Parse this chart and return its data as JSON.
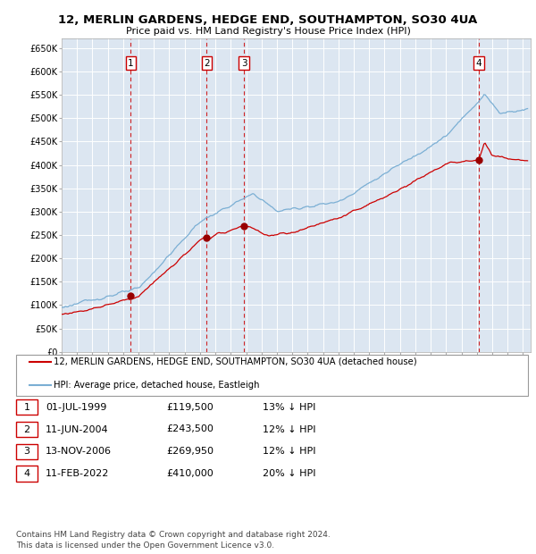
{
  "title_line1": "12, MERLIN GARDENS, HEDGE END, SOUTHAMPTON, SO30 4UA",
  "title_line2": "Price paid vs. HM Land Registry's House Price Index (HPI)",
  "ylim": [
    0,
    670000
  ],
  "yticks": [
    0,
    50000,
    100000,
    150000,
    200000,
    250000,
    300000,
    350000,
    400000,
    450000,
    500000,
    550000,
    600000,
    650000
  ],
  "ytick_labels": [
    "£0",
    "£50K",
    "£100K",
    "£150K",
    "£200K",
    "£250K",
    "£300K",
    "£350K",
    "£400K",
    "£450K",
    "£500K",
    "£550K",
    "£600K",
    "£650K"
  ],
  "xlim_start": 1995.0,
  "xlim_end": 2025.5,
  "sale_dates": [
    1999.5,
    2004.44,
    2006.87,
    2022.11
  ],
  "sale_prices": [
    119500,
    243500,
    269950,
    410000
  ],
  "sale_labels": [
    "1",
    "2",
    "3",
    "4"
  ],
  "legend_property": "12, MERLIN GARDENS, HEDGE END, SOUTHAMPTON, SO30 4UA (detached house)",
  "legend_hpi": "HPI: Average price, detached house, Eastleigh",
  "table_rows": [
    [
      "1",
      "01-JUL-1999",
      "£119,500",
      "13% ↓ HPI"
    ],
    [
      "2",
      "11-JUN-2004",
      "£243,500",
      "12% ↓ HPI"
    ],
    [
      "3",
      "13-NOV-2006",
      "£269,950",
      "12% ↓ HPI"
    ],
    [
      "4",
      "11-FEB-2022",
      "£410,000",
      "20% ↓ HPI"
    ]
  ],
  "footer": "Contains HM Land Registry data © Crown copyright and database right 2024.\nThis data is licensed under the Open Government Licence v3.0.",
  "sale_line_color": "#cc0000",
  "hpi_line_color": "#7bafd4",
  "background_color": "#dce6f1",
  "plot_bg_color": "#dce6f1",
  "grid_color": "#ffffff",
  "sale_marker_color": "#990000",
  "annotation_box_color": "#cc0000",
  "dashed_line_color": "#cc0000"
}
